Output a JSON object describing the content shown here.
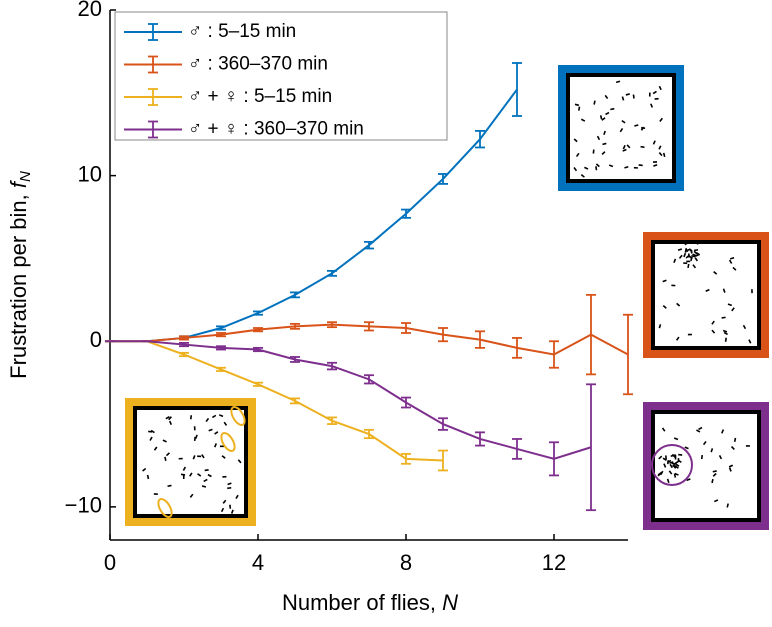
{
  "chart_data": {
    "type": "line",
    "xlabel": {
      "text": "Number of flies, ",
      "var": "N"
    },
    "ylabel": {
      "text": "Frustration per bin, ",
      "var": "f",
      "sub": "N"
    },
    "xlim": [
      0,
      14
    ],
    "ylim": [
      -12,
      20
    ],
    "xticks": [
      0,
      4,
      8,
      12
    ],
    "yticks": [
      {
        "value": -10,
        "label": "−10"
      },
      0,
      10,
      20
    ],
    "legend": "upper left",
    "series": [
      {
        "name": "♂ : 5–15 min",
        "color": "#0072bd",
        "x": [
          0,
          1,
          2,
          3,
          4,
          5,
          6,
          7,
          8,
          9,
          10,
          11
        ],
        "values": [
          0,
          0,
          0.2,
          0.8,
          1.7,
          2.8,
          4.1,
          5.8,
          7.7,
          9.8,
          12.2,
          15.2
        ],
        "errors": [
          0,
          0,
          0.1,
          0.1,
          0.1,
          0.15,
          0.15,
          0.2,
          0.25,
          0.3,
          0.5,
          1.6
        ]
      },
      {
        "name": "♂ : 360–370 min",
        "color": "#d95319",
        "x": [
          0,
          1,
          2,
          3,
          4,
          5,
          6,
          7,
          8,
          9,
          10,
          11,
          12,
          13,
          14
        ],
        "values": [
          0,
          0,
          0.2,
          0.4,
          0.7,
          0.9,
          1.0,
          0.9,
          0.8,
          0.4,
          0.1,
          -0.4,
          -0.8,
          0.4,
          -0.8
        ],
        "errors": [
          0,
          0,
          0.1,
          0.1,
          0.1,
          0.15,
          0.15,
          0.25,
          0.3,
          0.4,
          0.5,
          0.6,
          0.8,
          2.4,
          2.4
        ]
      },
      {
        "name": "♂ + ♀ : 5–15 min",
        "color": "#edb120",
        "x": [
          0,
          1,
          2,
          3,
          4,
          5,
          6,
          7,
          8,
          9
        ],
        "values": [
          0,
          0,
          -0.8,
          -1.7,
          -2.6,
          -3.6,
          -4.8,
          -5.6,
          -7.1,
          -7.2
        ],
        "errors": [
          0,
          0,
          0.1,
          0.1,
          0.1,
          0.15,
          0.2,
          0.25,
          0.3,
          0.6
        ]
      },
      {
        "name": "♂ + ♀ : 360–370 min",
        "color": "#7e2f8e",
        "x": [
          0,
          1,
          2,
          3,
          4,
          5,
          6,
          7,
          8,
          9,
          10,
          11,
          12,
          13
        ],
        "values": [
          0,
          0,
          -0.2,
          -0.4,
          -0.5,
          -1.1,
          -1.5,
          -2.3,
          -3.7,
          -5.0,
          -5.9,
          -6.5,
          -7.1,
          -6.4
        ],
        "errors": [
          0,
          0,
          0.1,
          0.1,
          0.1,
          0.15,
          0.2,
          0.25,
          0.3,
          0.35,
          0.4,
          0.6,
          1.0,
          3.8
        ]
      }
    ]
  }
}
